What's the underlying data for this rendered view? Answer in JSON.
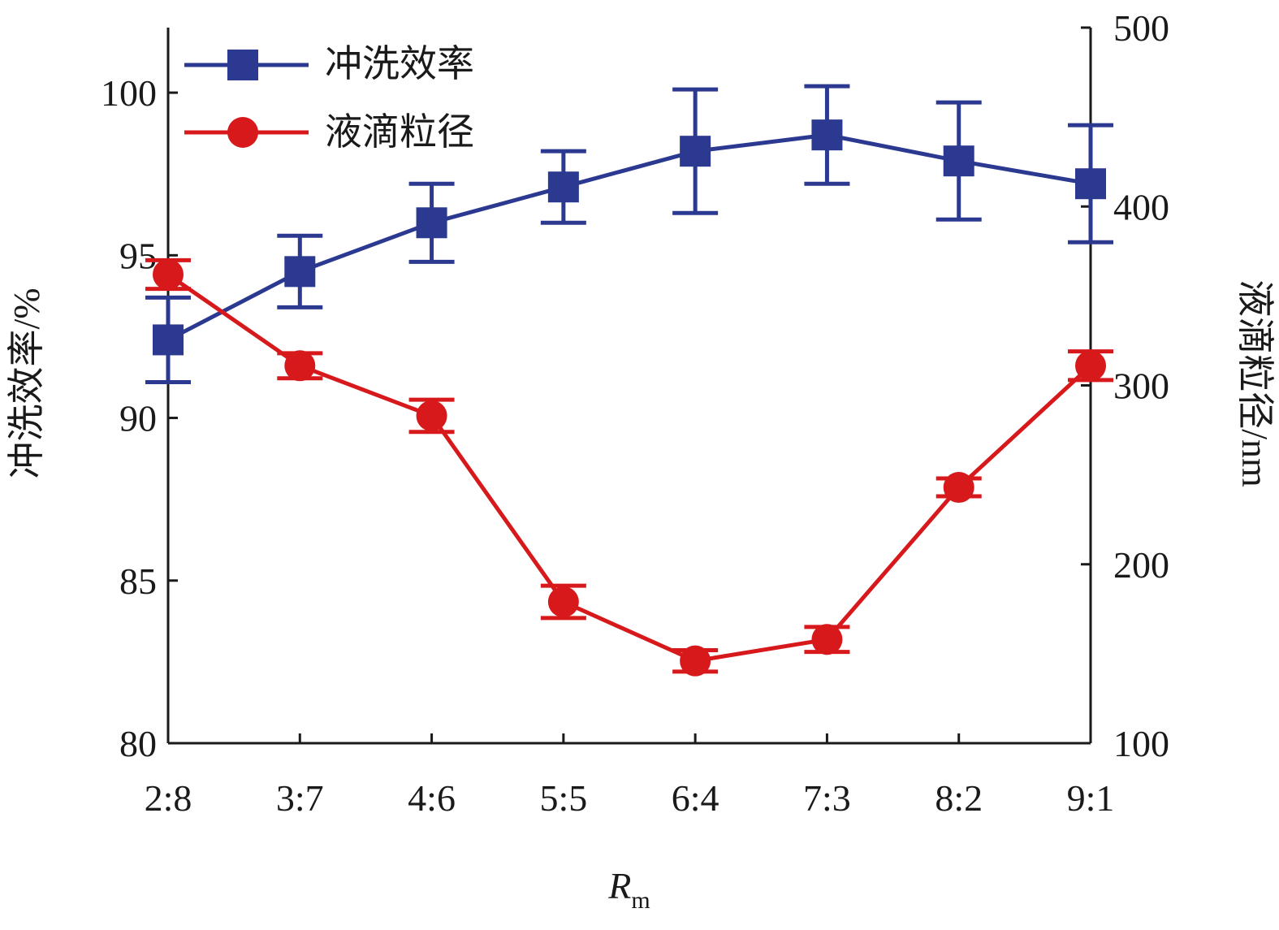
{
  "chart_data": {
    "type": "line",
    "categories": [
      "2:8",
      "3:7",
      "4:6",
      "5:5",
      "6:4",
      "7:3",
      "8:2",
      "9:1"
    ],
    "xlabel": {
      "main": "R",
      "sub": "m"
    },
    "ylabel_left": "冲洗效率/%",
    "ylabel_right": "液滴粒径/nm",
    "ylim_left": [
      80,
      102
    ],
    "ylim_right": [
      100,
      500
    ],
    "yticks_left": [
      80,
      85,
      90,
      95,
      100
    ],
    "yticks_right": [
      100,
      200,
      300,
      400,
      500
    ],
    "legend_position": "top-left",
    "series": [
      {
        "name": "冲洗效率",
        "axis": "left",
        "marker": "square",
        "color": "#2b3990",
        "values": [
          92.4,
          94.5,
          96.0,
          97.1,
          98.2,
          98.7,
          97.9,
          97.2
        ],
        "errors": [
          1.3,
          1.1,
          1.2,
          1.1,
          1.9,
          1.5,
          1.8,
          1.8
        ]
      },
      {
        "name": "液滴粒径",
        "axis": "right",
        "marker": "circle",
        "color": "#d7191c",
        "values": [
          362,
          311,
          283,
          179,
          146,
          158,
          243,
          311
        ],
        "errors": [
          8,
          7,
          9,
          9,
          6,
          7,
          5,
          8
        ]
      }
    ]
  }
}
